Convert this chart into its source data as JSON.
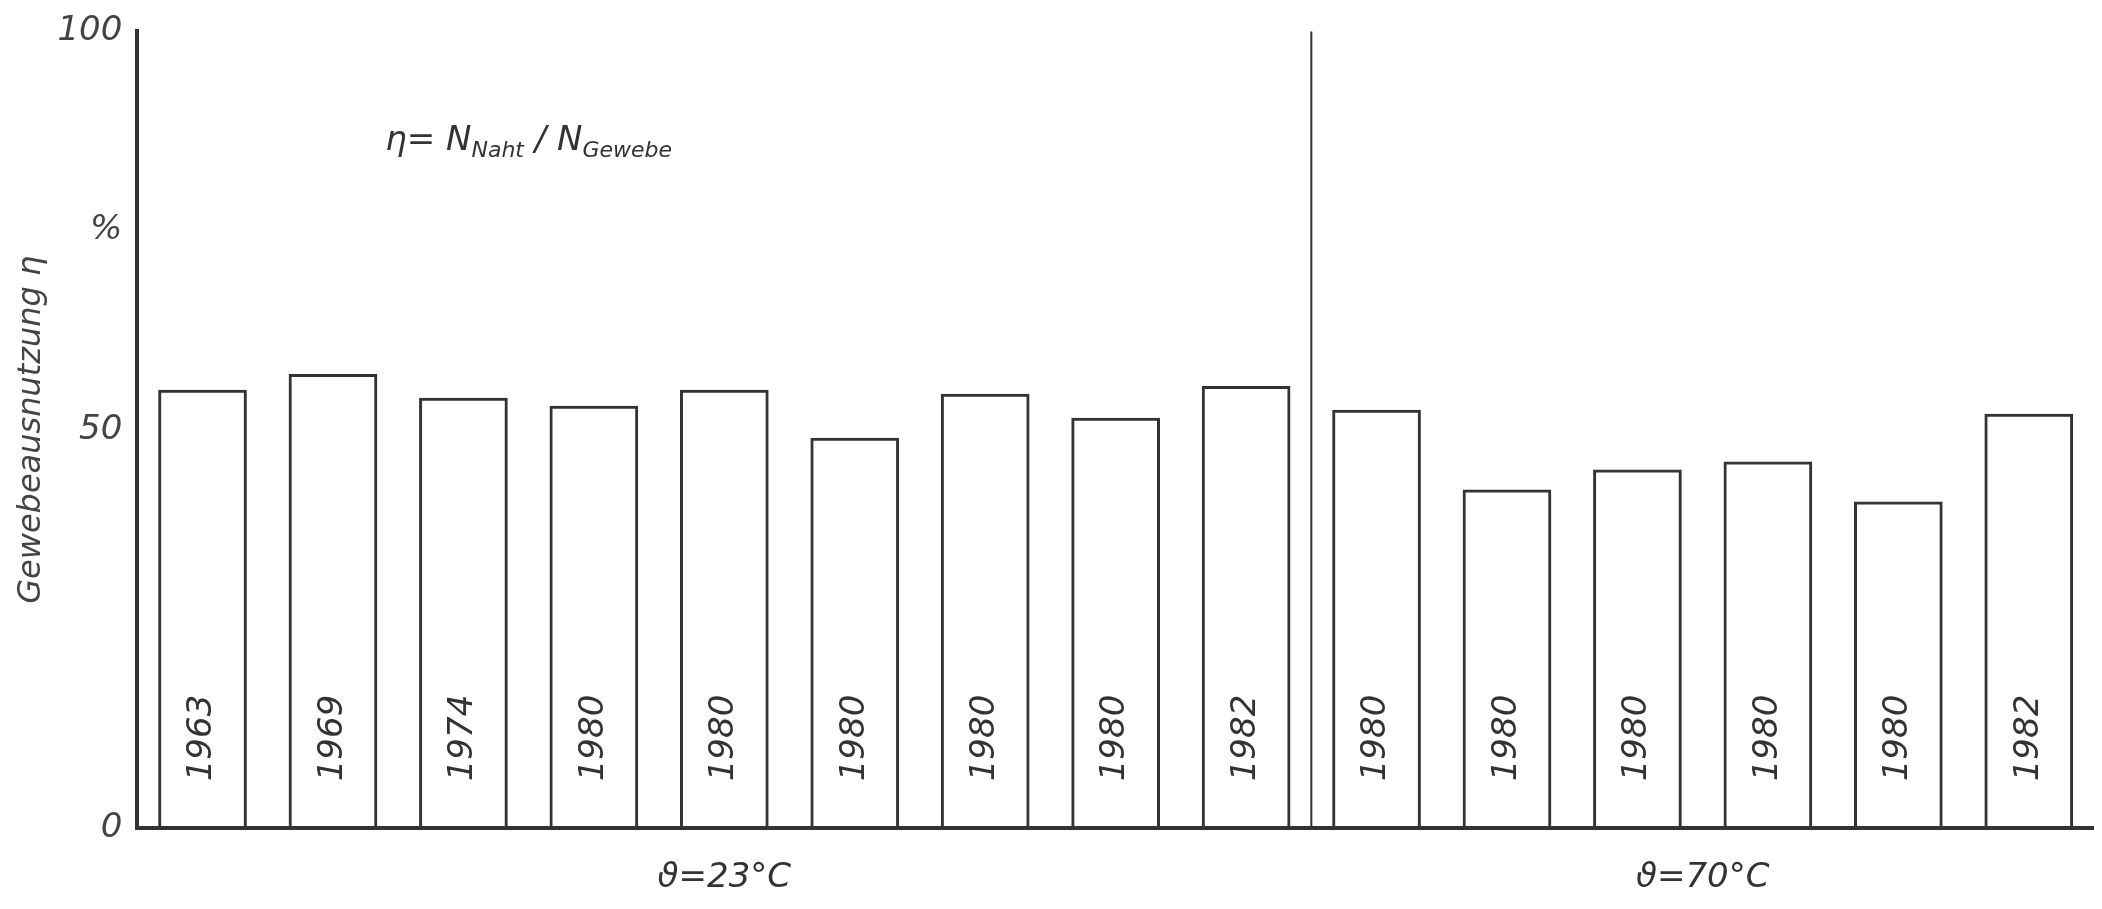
{
  "chart_data": {
    "type": "bar",
    "ylabel": "Gewebeausnutzung η",
    "categories": [
      "1963",
      "1969",
      "1974",
      "1980",
      "1980",
      "1980",
      "1980",
      "1980",
      "1982",
      "1980",
      "1980",
      "1980",
      "1980",
      "1980",
      "1982"
    ],
    "values": [
      55,
      57,
      54,
      53,
      55,
      49,
      54.5,
      51.5,
      55.5,
      52.5,
      42.5,
      45,
      46,
      41,
      52
    ],
    "color": "#333333",
    "ylim": [
      0,
      100
    ],
    "yticks": [
      0,
      50,
      {
        "value": 75,
        "label": "%"
      },
      100
    ],
    "grid": false,
    "legend": false,
    "annotations": [
      "η= N$_{Naht}$ / N$_{Gewebe}$",
      "ϑ=23°C",
      "ϑ=70°C"
    ]
  }
}
